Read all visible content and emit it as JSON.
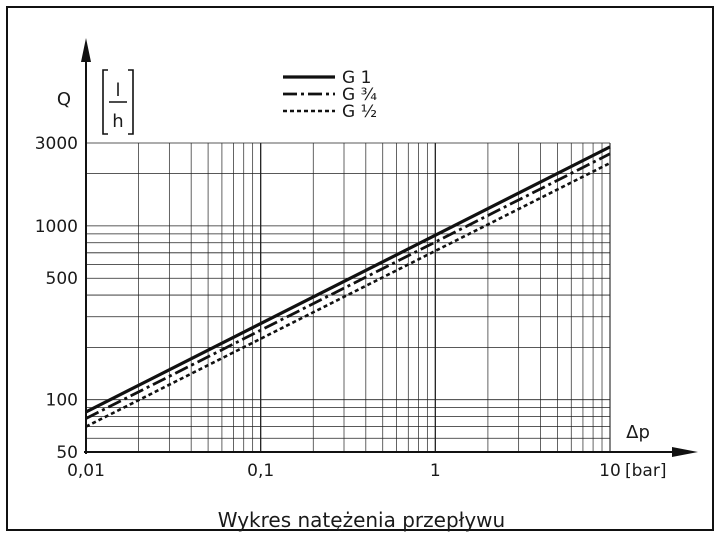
{
  "chart_data": {
    "type": "line",
    "scale": "log-log",
    "xlim": [
      0.01,
      10
    ],
    "ylim": [
      50,
      3000
    ],
    "xlabel": "Δp",
    "x_unit": "[bar]",
    "ylabel": "Q",
    "y_unit_num": "l",
    "y_unit_den": "h",
    "x_ticks": [
      "0,01",
      "0,1",
      "1",
      "10"
    ],
    "x_tick_values": [
      0.01,
      0.1,
      1,
      10
    ],
    "y_ticks": [
      "50",
      "100",
      "500",
      "1000",
      "3000"
    ],
    "y_tick_values": [
      50,
      100,
      500,
      1000,
      3000
    ],
    "grid": true,
    "legend_position": "top",
    "series": [
      {
        "name": "G 1",
        "dash": "solid",
        "x": [
          0.01,
          10
        ],
        "y": [
          85,
          2850
        ]
      },
      {
        "name": "G ¾",
        "dash": "dash-dot",
        "x": [
          0.01,
          10
        ],
        "y": [
          78,
          2600
        ]
      },
      {
        "name": "G ½",
        "dash": "dotted",
        "x": [
          0.01,
          10
        ],
        "y": [
          70,
          2300
        ]
      }
    ]
  },
  "caption": "Wykres natężenia przepływu"
}
